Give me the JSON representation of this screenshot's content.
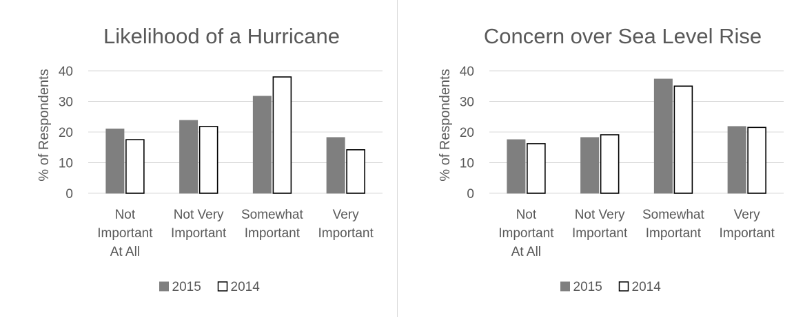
{
  "chart_data": [
    {
      "type": "bar",
      "title": "Likelihood of a Hurricane",
      "xlabel": "",
      "ylabel": "% of Respondents",
      "ylim": [
        0,
        40
      ],
      "yticks": [
        0,
        10,
        20,
        30,
        40
      ],
      "grid": true,
      "legend_position": "bottom",
      "categories": [
        [
          "Not",
          "Important",
          "At All"
        ],
        [
          "Not Very",
          "Important"
        ],
        [
          "Somewhat",
          "Important"
        ],
        [
          "Very",
          "Important"
        ]
      ],
      "series": [
        {
          "name": "2015",
          "values": [
            21,
            23.8,
            31.7,
            18.2
          ],
          "fill": "#7f7f7f",
          "stroke": "#7f7f7f"
        },
        {
          "name": "2014",
          "values": [
            17.5,
            21.8,
            38,
            14.2
          ],
          "fill": "#ffffff",
          "stroke": "#000000"
        }
      ]
    },
    {
      "type": "bar",
      "title": "Concern over Sea Level Rise",
      "xlabel": "",
      "ylabel": "% of Respondents",
      "ylim": [
        0,
        40
      ],
      "yticks": [
        0,
        10,
        20,
        30,
        40
      ],
      "grid": true,
      "legend_position": "bottom",
      "categories": [
        [
          "Not",
          "Important",
          "At All"
        ],
        [
          "Not Very",
          "Important"
        ],
        [
          "Somewhat",
          "Important"
        ],
        [
          "Very",
          "Important"
        ]
      ],
      "series": [
        {
          "name": "2015",
          "values": [
            17.5,
            18.2,
            37.3,
            21.8
          ],
          "fill": "#7f7f7f",
          "stroke": "#7f7f7f"
        },
        {
          "name": "2014",
          "values": [
            16.2,
            19.1,
            35,
            21.5
          ],
          "fill": "#ffffff",
          "stroke": "#000000"
        }
      ]
    }
  ],
  "colors": {
    "gridline": "#d9d9d9",
    "text": "#595959",
    "series_2015": "#7f7f7f",
    "series_2014_outline": "#000000"
  }
}
